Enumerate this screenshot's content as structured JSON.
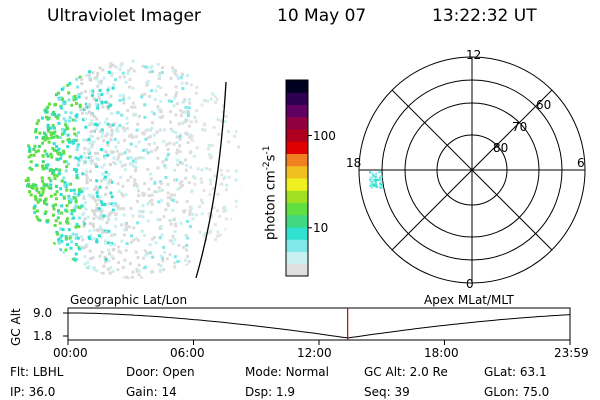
{
  "header": {
    "title": "Ultraviolet Imager",
    "date": "10 May 07",
    "time": "13:22:32 UT"
  },
  "colorbar": {
    "label": "photon cm",
    "exp1": "-2",
    "mid": "s",
    "exp2": "-1",
    "ticks": [
      {
        "value": 100,
        "label": "100"
      },
      {
        "value": 10,
        "label": "10"
      }
    ],
    "range": [
      3,
      400
    ],
    "colors": [
      "#e0e0e0",
      "#c8f0f0",
      "#80e8e8",
      "#30e0d0",
      "#40d880",
      "#60e040",
      "#a0e020",
      "#f0f020",
      "#f0c020",
      "#f08020",
      "#e00000",
      "#b00020",
      "#900040",
      "#600060",
      "#300050",
      "#000020"
    ]
  },
  "polar": {
    "mlt_labels": [
      {
        "hour": 12,
        "label": "12"
      },
      {
        "hour": 6,
        "label": "6"
      },
      {
        "hour": 18,
        "label": "18"
      },
      {
        "hour": 0,
        "label": "0"
      }
    ],
    "lat_labels": [
      {
        "lat": 80,
        "label": "80"
      },
      {
        "lat": 70,
        "label": "70"
      },
      {
        "lat": 60,
        "label": "60"
      }
    ],
    "rings": [
      80,
      70,
      60,
      50
    ]
  },
  "image_labels": {
    "left": "Geographic Lat/Lon",
    "right": "Apex MLat/MLT"
  },
  "altplot": {
    "ylabel": "GC Alt",
    "yticks": [
      "9.0",
      "1.8"
    ],
    "xticks": [
      "00:00",
      "06:00",
      "12:00",
      "18:00",
      "23:59"
    ],
    "current_time_hours": 13.37,
    "line_color": "#cc0000"
  },
  "info": {
    "row1": [
      {
        "k": "Flt:",
        "v": "LBHL"
      },
      {
        "k": "Door:",
        "v": "Open"
      },
      {
        "k": "Mode:",
        "v": "Normal"
      },
      {
        "k": "GC Alt:",
        "v": "2.0 Re"
      },
      {
        "k": "GLat:",
        "v": "63.1"
      }
    ],
    "row2": [
      {
        "k": "IP:",
        "v": "36.0"
      },
      {
        "k": "Gain:",
        "v": "14"
      },
      {
        "k": "Dsp:",
        "v": "1.9"
      },
      {
        "k": "Seq:",
        "v": "39"
      },
      {
        "k": "GLon:",
        "v": "75.0"
      }
    ]
  }
}
